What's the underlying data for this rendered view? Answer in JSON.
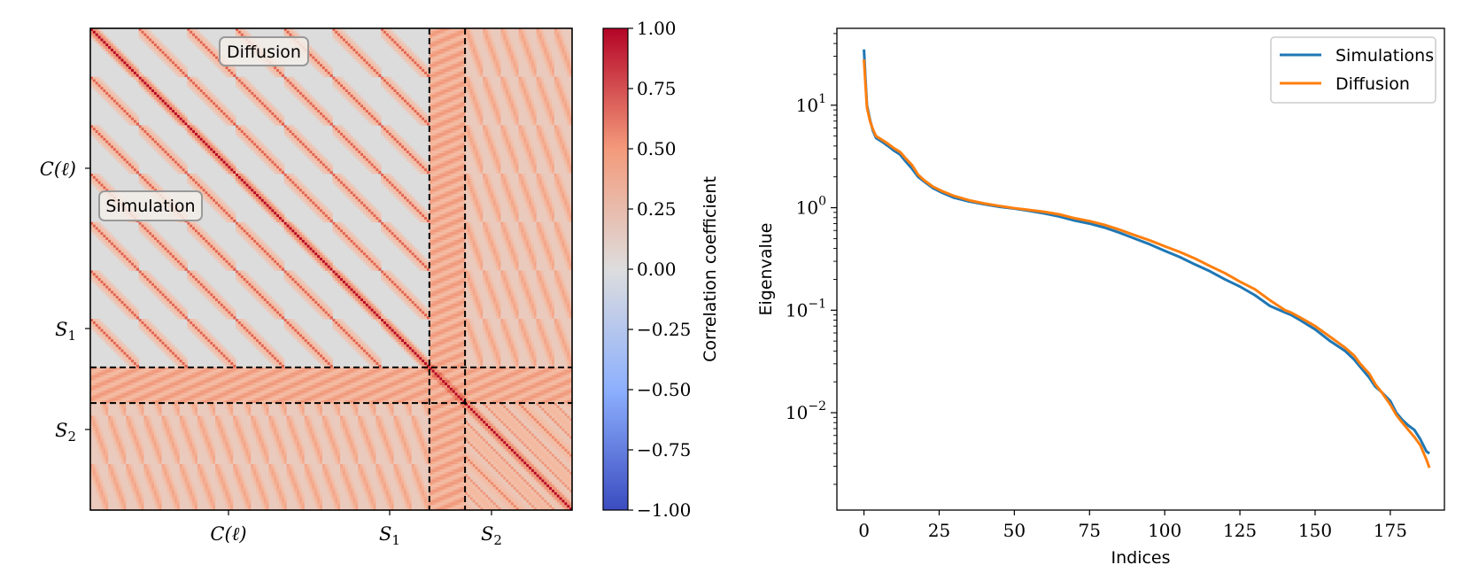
{
  "chart_data": [
    {
      "type": "heatmap",
      "title": "",
      "blocks": [
        "C(ℓ)",
        "S1",
        "S2"
      ],
      "block_sizes": [
        133,
        14,
        42
      ],
      "xlabel_ticks": [
        "C(ℓ)",
        "S",
        "S"
      ],
      "xlabel_subs": [
        "",
        "1",
        "2"
      ],
      "ylabel_ticks": [
        "C(ℓ)",
        "S",
        "S"
      ],
      "ylabel_subs": [
        "",
        "1",
        "2"
      ],
      "upper_triangle_label": "Diffusion",
      "lower_triangle_label": "Simulation",
      "colorbar": {
        "label": "Correlation coefficient",
        "range": [
          -1.0,
          1.0
        ],
        "ticks": [
          "1.00",
          "0.75",
          "0.50",
          "0.25",
          "0.00",
          "−0.25",
          "−0.50",
          "−0.75",
          "−1.00"
        ],
        "colormap": "coolwarm"
      }
    },
    {
      "type": "line",
      "title": "",
      "xlabel": "Indices",
      "ylabel": "Eigenvalue",
      "yscale": "log",
      "xlim": [
        -9,
        193
      ],
      "ylim_exp": [
        -2.95,
        1.75
      ],
      "xticks": [
        "0",
        "25",
        "50",
        "75",
        "100",
        "125",
        "150",
        "175"
      ],
      "yticks": [
        {
          "base": "10",
          "exp": "1"
        },
        {
          "base": "10",
          "exp": "0"
        },
        {
          "base": "10",
          "exp": "−1"
        },
        {
          "base": "10",
          "exp": "−2"
        }
      ],
      "legend": {
        "position": "upper-right",
        "entries": [
          "Simulations",
          "Diffusion"
        ]
      },
      "series": [
        {
          "name": "Simulations",
          "color": "#1f77b4",
          "x": [
            0,
            0.5,
            1,
            2,
            3,
            4,
            6,
            8,
            10,
            12,
            14,
            16,
            18,
            20,
            23,
            26,
            30,
            35,
            40,
            45,
            50,
            55,
            60,
            65,
            70,
            75,
            80,
            85,
            90,
            95,
            100,
            105,
            110,
            115,
            120,
            125,
            130,
            135,
            140,
            142,
            145,
            150,
            155,
            160,
            163,
            165,
            168,
            170,
            172,
            175,
            177,
            179,
            181,
            183,
            185,
            187,
            188
          ],
          "y": [
            35,
            18,
            10,
            7.2,
            5.6,
            4.8,
            4.4,
            4.0,
            3.6,
            3.3,
            2.8,
            2.4,
            2.0,
            1.8,
            1.55,
            1.4,
            1.25,
            1.15,
            1.08,
            1.02,
            0.98,
            0.93,
            0.88,
            0.82,
            0.75,
            0.7,
            0.64,
            0.57,
            0.5,
            0.44,
            0.38,
            0.33,
            0.28,
            0.24,
            0.2,
            0.17,
            0.14,
            0.11,
            0.095,
            0.09,
            0.08,
            0.065,
            0.05,
            0.04,
            0.033,
            0.028,
            0.022,
            0.018,
            0.016,
            0.013,
            0.01,
            0.0085,
            0.0075,
            0.0068,
            0.0055,
            0.0042,
            0.004
          ]
        },
        {
          "name": "Diffusion",
          "color": "#ff7f0e",
          "x": [
            0,
            0.5,
            1,
            2,
            3,
            4,
            6,
            8,
            10,
            12,
            14,
            16,
            18,
            20,
            23,
            26,
            30,
            35,
            40,
            45,
            50,
            55,
            60,
            65,
            70,
            75,
            80,
            85,
            90,
            95,
            100,
            105,
            110,
            115,
            120,
            125,
            130,
            135,
            140,
            142,
            145,
            150,
            155,
            160,
            163,
            165,
            168,
            170,
            172,
            175,
            177,
            179,
            181,
            183,
            185,
            187,
            188
          ],
          "y": [
            28,
            16,
            9.5,
            7.0,
            5.8,
            5.0,
            4.6,
            4.2,
            3.8,
            3.5,
            3.0,
            2.6,
            2.1,
            1.85,
            1.6,
            1.45,
            1.3,
            1.18,
            1.1,
            1.04,
            0.99,
            0.95,
            0.91,
            0.86,
            0.79,
            0.74,
            0.68,
            0.61,
            0.54,
            0.48,
            0.42,
            0.37,
            0.32,
            0.27,
            0.23,
            0.19,
            0.16,
            0.125,
            0.1,
            0.095,
            0.085,
            0.07,
            0.055,
            0.043,
            0.036,
            0.03,
            0.024,
            0.019,
            0.016,
            0.012,
            0.0095,
            0.008,
            0.0068,
            0.0058,
            0.0048,
            0.0035,
            0.0029
          ]
        }
      ]
    }
  ]
}
